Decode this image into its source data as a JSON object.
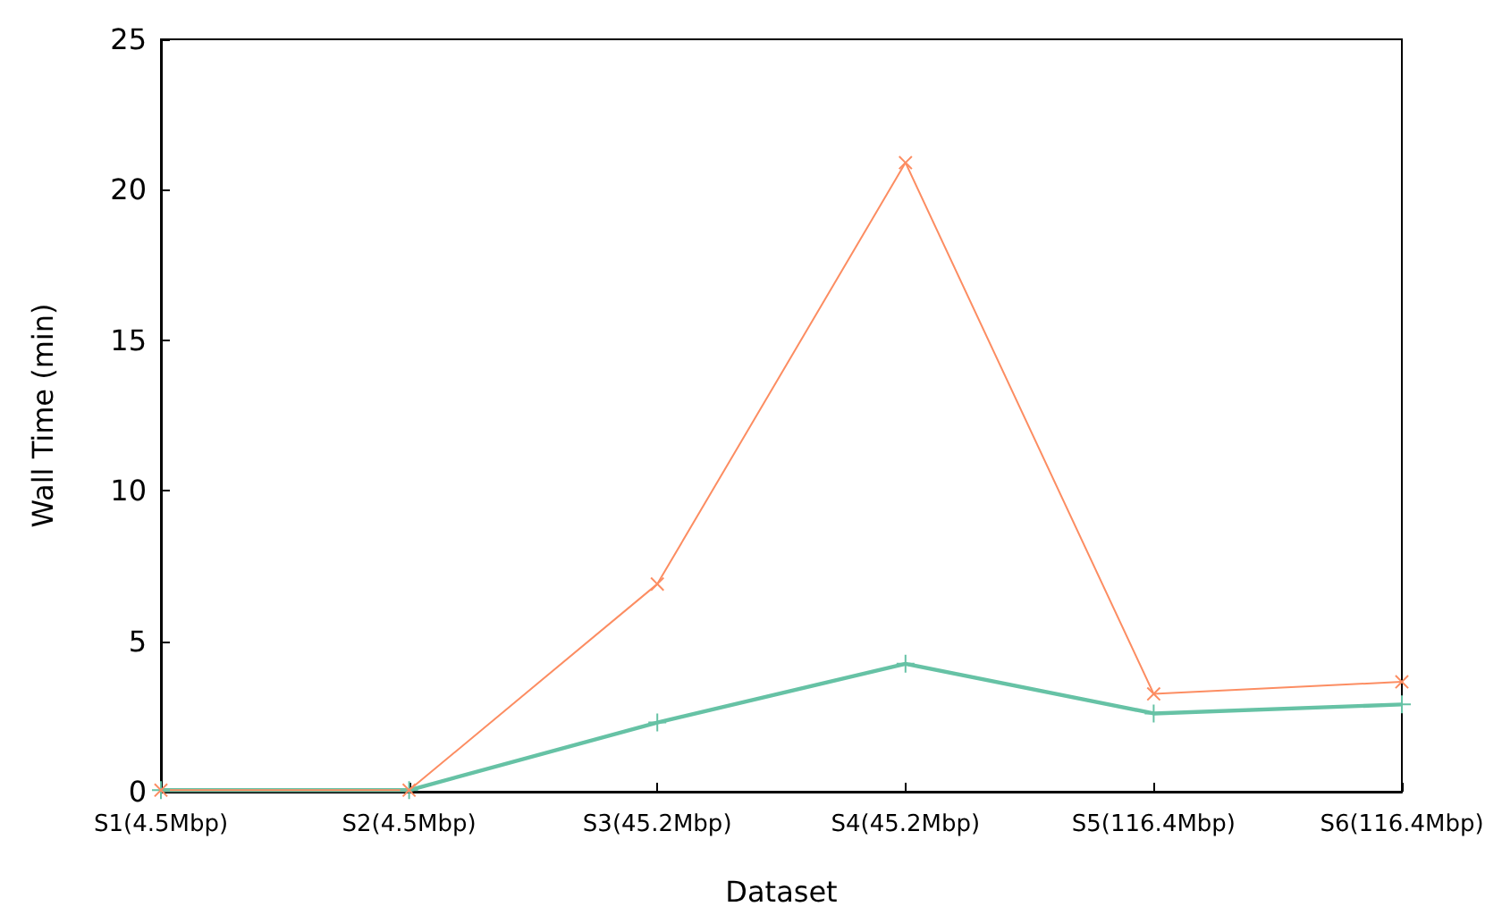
{
  "chart_data": {
    "type": "line",
    "xlabel": "Dataset",
    "ylabel": "Wall Time (min)",
    "categories": [
      "S1(4.5Mbp)",
      "S2(4.5Mbp)",
      "S3(45.2Mbp)",
      "S4(45.2Mbp)",
      "S5(116.4Mbp)",
      "S6(116.4Mbp)"
    ],
    "series": [
      {
        "color": "#66c2a5",
        "values": [
          0.05,
          0.05,
          2.3,
          4.25,
          2.6,
          2.9
        ]
      },
      {
        "color": "#fc8d62",
        "values": [
          0.05,
          0.05,
          6.9,
          20.9,
          3.25,
          3.65
        ]
      }
    ],
    "ylim": [
      0,
      25
    ],
    "yticks": [
      0,
      5,
      10,
      15,
      20,
      25
    ],
    "grid": false,
    "marker": "cross",
    "line_style": "solid"
  }
}
